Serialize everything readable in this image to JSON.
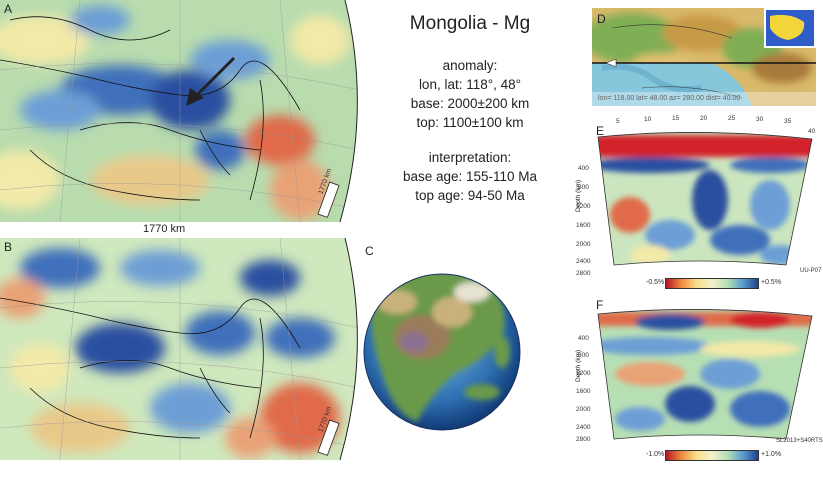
{
  "title": "Mongolia - Mg",
  "anomaly": {
    "heading": "anomaly:",
    "lonlat": "lon, lat: 118°, 48°",
    "base": "base: 2000±200 km",
    "top": "top: 1100±100 km"
  },
  "interpretation": {
    "heading": "interpretation:",
    "base_age": "base age: 155-110 Ma",
    "top_age": "top age: 94-50 Ma"
  },
  "panels": {
    "a": "A",
    "b": "B",
    "c": "C",
    "d": "D",
    "e": "E",
    "f": "F"
  },
  "scale_label": "1770 km",
  "map_depth_a": "1770 km",
  "map_depth_b": "1770 km",
  "profile_d_label": "lon= 118.00 lat= 48.00 az= 280.00 dist= 40.00",
  "profile_e": {
    "x_ticks": [
      "5",
      "10",
      "15",
      "20",
      "25",
      "30",
      "35",
      "40"
    ],
    "y_ticks": [
      "400",
      "800",
      "1200",
      "1600",
      "2000",
      "2400",
      "2800"
    ],
    "y_label": "Depth (km)",
    "colorbar_min": "-0.5%",
    "colorbar_max": "+0.5%",
    "model": "UU-P07"
  },
  "profile_f": {
    "y_ticks": [
      "400",
      "800",
      "1200",
      "1600",
      "2000",
      "2400",
      "2800"
    ],
    "y_label": "Depth (km)",
    "colorbar_min": "-1.0%",
    "colorbar_max": "+1.0%",
    "model": "SL2013+S40RTS"
  },
  "colors": {
    "slow": "#c8331f",
    "neutral": "#f4ecb8",
    "fast": "#2a4fa0"
  }
}
